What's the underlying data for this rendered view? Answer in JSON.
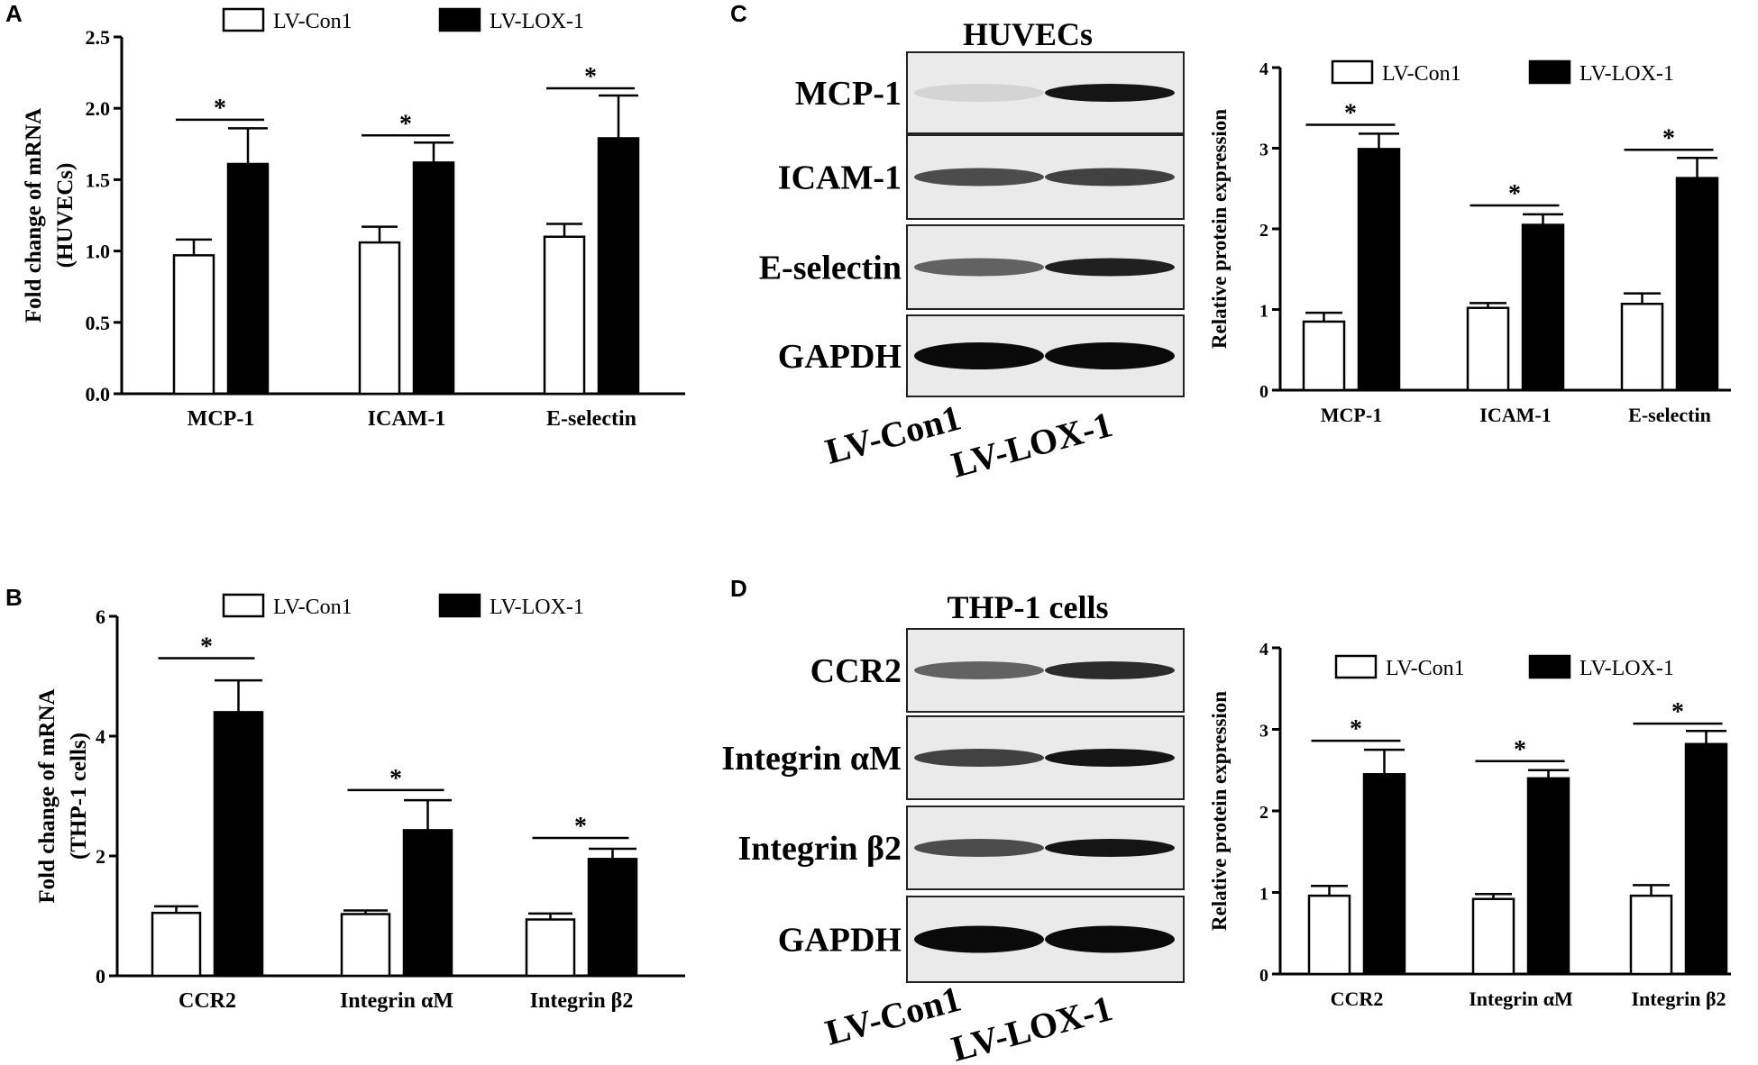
{
  "panels": {
    "A": {
      "letter": "A"
    },
    "B": {
      "letter": "B"
    },
    "C": {
      "letter": "C",
      "blot_title": "HUVECs"
    },
    "D": {
      "letter": "D",
      "blot_title": "THP-1 cells"
    }
  },
  "blots": {
    "C": {
      "rows": [
        "MCP-1",
        "ICAM-1",
        "E-selectin",
        "GAPDH"
      ],
      "lanes": [
        "LV-Con1",
        "LV-LOX-1"
      ],
      "intensity": [
        [
          0.08,
          0.95
        ],
        [
          0.7,
          0.75
        ],
        [
          0.6,
          0.9
        ],
        [
          1.0,
          1.0
        ]
      ]
    },
    "D": {
      "rows": [
        "CCR2",
        "Integrin αM",
        "Integrin β2",
        "GAPDH"
      ],
      "lanes": [
        "LV-Con1",
        "LV-LOX-1"
      ],
      "intensity": [
        [
          0.6,
          0.85
        ],
        [
          0.75,
          0.95
        ],
        [
          0.7,
          0.95
        ],
        [
          1.0,
          1.0
        ]
      ]
    }
  },
  "colors": {
    "con": "#ffffff",
    "lox": "#000000",
    "stroke": "#000000"
  },
  "chart_data": [
    {
      "id": "A",
      "type": "bar",
      "ylabel": [
        "Fold change of mRNA",
        "(HUVECs)"
      ],
      "categories": [
        "MCP-1",
        "ICAM-1",
        "E-selectin"
      ],
      "ylim": [
        0,
        2.5
      ],
      "yticks": [
        "0.0",
        "0.5",
        "1.0",
        "1.5",
        "2.0",
        "2.5"
      ],
      "series": [
        {
          "name": "LV-Con1",
          "values": [
            0.97,
            1.06,
            1.1
          ],
          "errors": [
            0.11,
            0.11,
            0.09
          ]
        },
        {
          "name": "LV-LOX-1",
          "values": [
            1.61,
            1.62,
            1.79
          ],
          "errors": [
            0.25,
            0.14,
            0.3
          ]
        }
      ],
      "significance": "*",
      "sig_levels": [
        1.92,
        1.81,
        2.14
      ],
      "legend": "top"
    },
    {
      "id": "B",
      "type": "bar",
      "ylabel": [
        "Fold change of mRNA",
        "(THP-1 cells)"
      ],
      "categories": [
        "CCR2",
        "Integrin αM",
        "Integrin β2"
      ],
      "ylim": [
        0,
        6
      ],
      "yticks": [
        "0",
        "2",
        "4",
        "6"
      ],
      "series": [
        {
          "name": "LV-Con1",
          "values": [
            1.05,
            1.03,
            0.94
          ],
          "errors": [
            0.11,
            0.06,
            0.1
          ]
        },
        {
          "name": "LV-LOX-1",
          "values": [
            4.4,
            2.43,
            1.95
          ],
          "errors": [
            0.53,
            0.5,
            0.17
          ]
        }
      ],
      "significance": "*",
      "sig_levels": [
        5.3,
        3.1,
        2.3
      ],
      "legend": "top"
    },
    {
      "id": "C",
      "type": "bar",
      "ylabel": [
        "Relative protein expression"
      ],
      "categories": [
        "MCP-1",
        "ICAM-1",
        "E-selectin"
      ],
      "ylim": [
        0,
        4
      ],
      "yticks": [
        "0",
        "1",
        "2",
        "3",
        "4"
      ],
      "series": [
        {
          "name": "LV-Con1",
          "values": [
            0.85,
            1.02,
            1.07
          ],
          "errors": [
            0.11,
            0.06,
            0.13
          ]
        },
        {
          "name": "LV-LOX-1",
          "values": [
            2.99,
            2.05,
            2.63
          ],
          "errors": [
            0.19,
            0.13,
            0.25
          ]
        }
      ],
      "significance": "*",
      "sig_levels": [
        3.29,
        2.29,
        2.98
      ],
      "legend": "top"
    },
    {
      "id": "D",
      "type": "bar",
      "ylabel": [
        "Relative protein expression"
      ],
      "categories": [
        "CCR2",
        "Integrin αM",
        "Integrin β2"
      ],
      "ylim": [
        0,
        4
      ],
      "yticks": [
        "0",
        "1",
        "2",
        "3",
        "4"
      ],
      "series": [
        {
          "name": "LV-Con1",
          "values": [
            0.96,
            0.92,
            0.96
          ],
          "errors": [
            0.12,
            0.06,
            0.13
          ]
        },
        {
          "name": "LV-LOX-1",
          "values": [
            2.45,
            2.4,
            2.82
          ],
          "errors": [
            0.3,
            0.1,
            0.16
          ]
        }
      ],
      "significance": "*",
      "sig_levels": [
        2.86,
        2.61,
        3.07
      ],
      "legend": "top"
    }
  ]
}
